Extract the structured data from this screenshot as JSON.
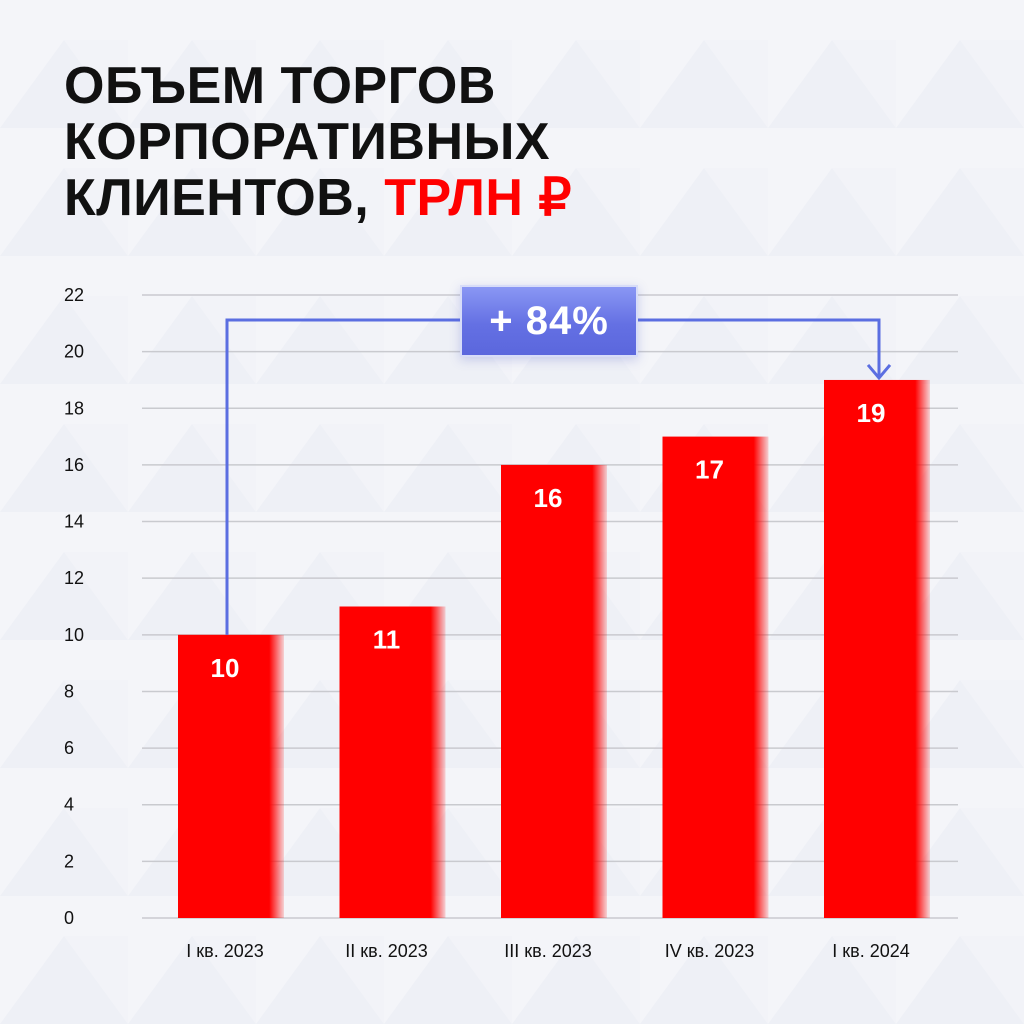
{
  "title": {
    "line1": "ОБЪЕМ ТОРГОВ",
    "line2": "КОРПОРАТИВНЫХ",
    "line3_prefix": "КЛИЕНТОВ, ",
    "line3_accent": "ТРЛН ₽"
  },
  "colors": {
    "bar": "#ff0000",
    "accent": "#ff0000",
    "arrow": "#5b6ee1",
    "grid": "#c9cacf",
    "text": "#111111"
  },
  "growth_badge": "+ 84%",
  "chart_data": {
    "type": "bar",
    "categories": [
      "I кв. 2023",
      "II кв. 2023",
      "III кв. 2023",
      "IV кв. 2023",
      "I кв. 2024"
    ],
    "values": [
      10,
      11,
      16,
      17,
      19
    ],
    "data_labels": [
      "10",
      "11",
      "16",
      "17",
      "19"
    ],
    "title": "ОБЪЕМ ТОРГОВ КОРПОРАТИВНЫХ КЛИЕНТОВ, ТРЛН ₽",
    "xlabel": "",
    "ylabel": "",
    "ylim": [
      0,
      22
    ],
    "yticks": [
      0,
      2,
      4,
      6,
      8,
      10,
      12,
      14,
      16,
      18,
      20,
      22
    ],
    "grid": true,
    "legend": "none",
    "annotation": {
      "text": "+ 84%",
      "from_category": "I кв. 2023",
      "to_category": "I кв. 2024"
    }
  }
}
